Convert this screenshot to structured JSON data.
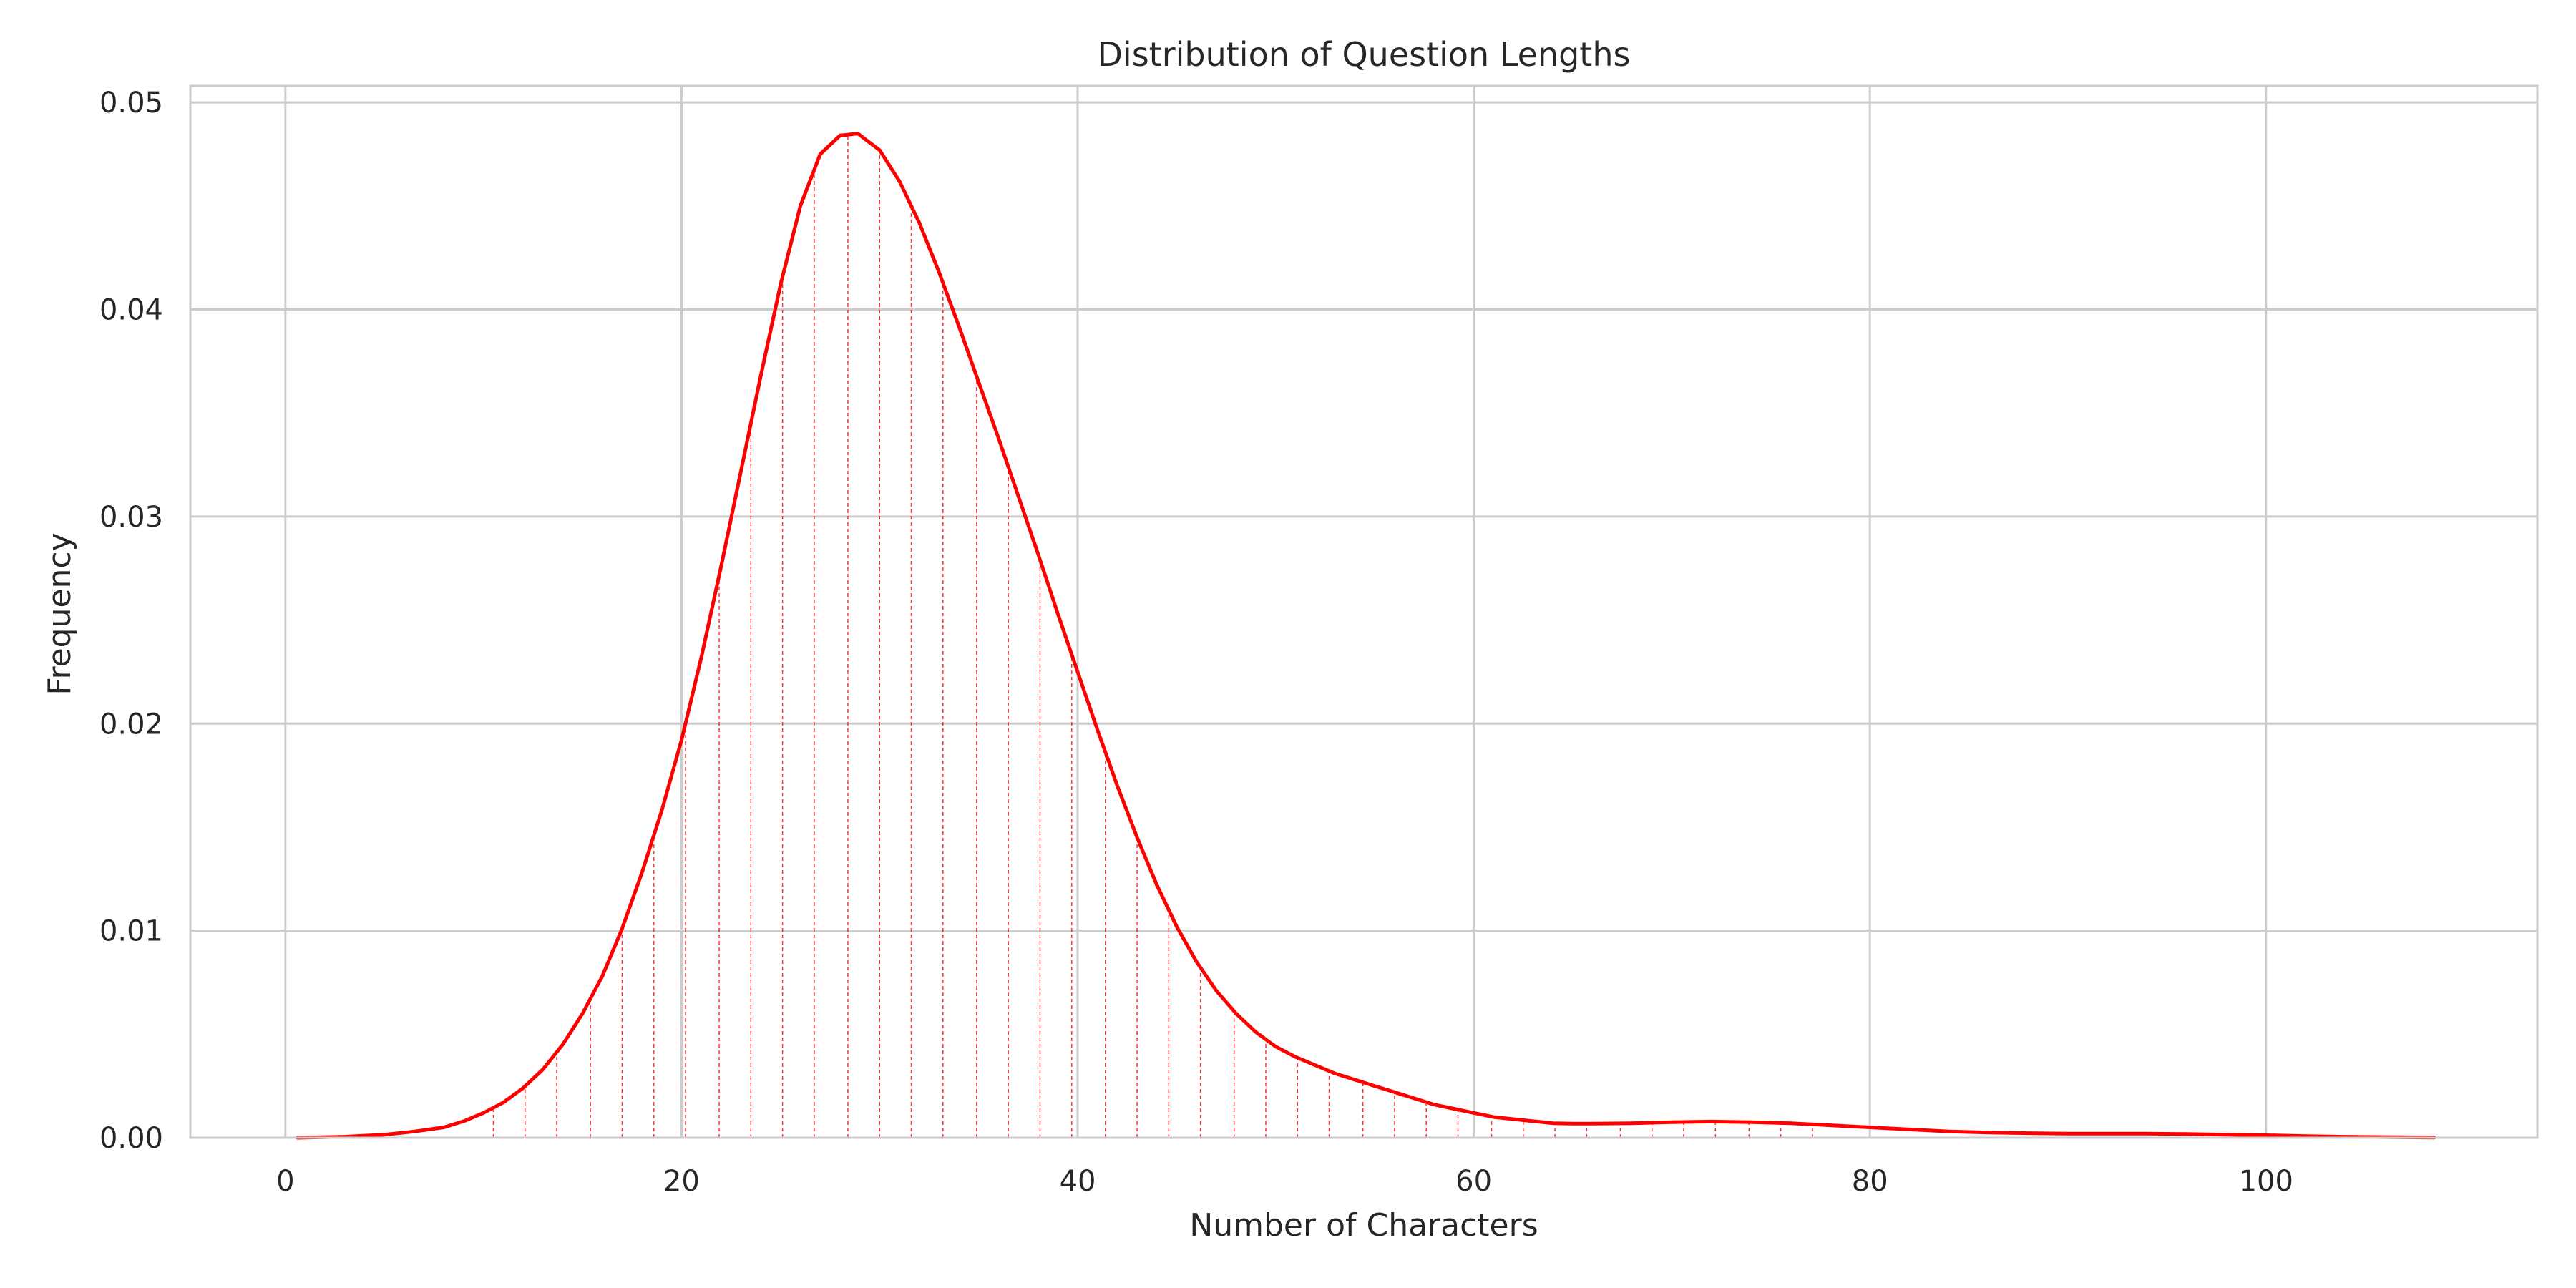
{
  "chart_data": {
    "type": "line",
    "title": "Distribution of Question Lengths",
    "xlabel": "Number of Characters",
    "ylabel": "Frequency",
    "xlim": [
      -4.8,
      113.7
    ],
    "ylim": [
      0,
      0.0508
    ],
    "x_ticks": [
      0,
      20,
      40,
      60,
      80,
      100
    ],
    "x_tick_labels": [
      "0",
      "20",
      "40",
      "60",
      "80",
      "100"
    ],
    "y_ticks": [
      0,
      0.01,
      0.02,
      0.03,
      0.04,
      0.05
    ],
    "y_tick_labels": [
      "0.00",
      "0.01",
      "0.02",
      "0.03",
      "0.04",
      "0.05"
    ],
    "grid": true,
    "line_color": "#ff0000",
    "series": [
      {
        "x": [
          0.6,
          3,
          5,
          6.5,
          8,
          9,
          10,
          11,
          12,
          13,
          14,
          15,
          16,
          17,
          18,
          19,
          20,
          21,
          22,
          23,
          24,
          25,
          26,
          27,
          28,
          28.9,
          30,
          31,
          32,
          33,
          34,
          35,
          36,
          37,
          38,
          39,
          40,
          41,
          42,
          43,
          44,
          45,
          46,
          47,
          48,
          49,
          50,
          51,
          52,
          53,
          54,
          55,
          56,
          57,
          58,
          59,
          60,
          61,
          62,
          63,
          64,
          65,
          66,
          68,
          70,
          72,
          74,
          76,
          78,
          80,
          82,
          84,
          86,
          88,
          90,
          92,
          94,
          96,
          98,
          100,
          102,
          104,
          106,
          108.5
        ],
        "y": [
          0.0,
          5e-05,
          0.00015,
          0.0003,
          0.0005,
          0.0008,
          0.0012,
          0.0017,
          0.0024,
          0.0033,
          0.0045,
          0.006,
          0.0078,
          0.0101,
          0.0128,
          0.0158,
          0.0192,
          0.0232,
          0.0276,
          0.0322,
          0.0368,
          0.0412,
          0.045,
          0.0475,
          0.0484,
          0.0485,
          0.0477,
          0.0462,
          0.0442,
          0.0418,
          0.0392,
          0.0365,
          0.0338,
          0.031,
          0.0282,
          0.0253,
          0.0225,
          0.0197,
          0.017,
          0.0145,
          0.0122,
          0.0102,
          0.0085,
          0.0071,
          0.006,
          0.0051,
          0.0044,
          0.0039,
          0.0035,
          0.0031,
          0.0028,
          0.0025,
          0.0022,
          0.0019,
          0.0016,
          0.0014,
          0.0012,
          0.001,
          0.0009,
          0.0008,
          0.0007,
          0.00068,
          0.00068,
          0.0007,
          0.00075,
          0.00078,
          0.00075,
          0.0007,
          0.0006,
          0.0005,
          0.0004,
          0.0003,
          0.00025,
          0.00022,
          0.0002,
          0.0002,
          0.0002,
          0.00018,
          0.00015,
          0.00012,
          8e-05,
          5e-05,
          3e-05,
          1e-05
        ]
      }
    ],
    "drop_lines_x": [
      10.5,
      12.1,
      13.7,
      15.4,
      17.0,
      18.6,
      20.2,
      21.9,
      23.5,
      25.1,
      26.7,
      28.4,
      30.0,
      31.6,
      33.2,
      34.9,
      36.5,
      38.1,
      39.7,
      41.4,
      43.0,
      44.6,
      46.2,
      47.9,
      49.5,
      51.1,
      52.7,
      54.4,
      56.0,
      57.6,
      59.2,
      60.9,
      62.5,
      64.1,
      65.7,
      67.4,
      69.0,
      70.6,
      72.2,
      73.9,
      75.5,
      77.1
    ]
  }
}
